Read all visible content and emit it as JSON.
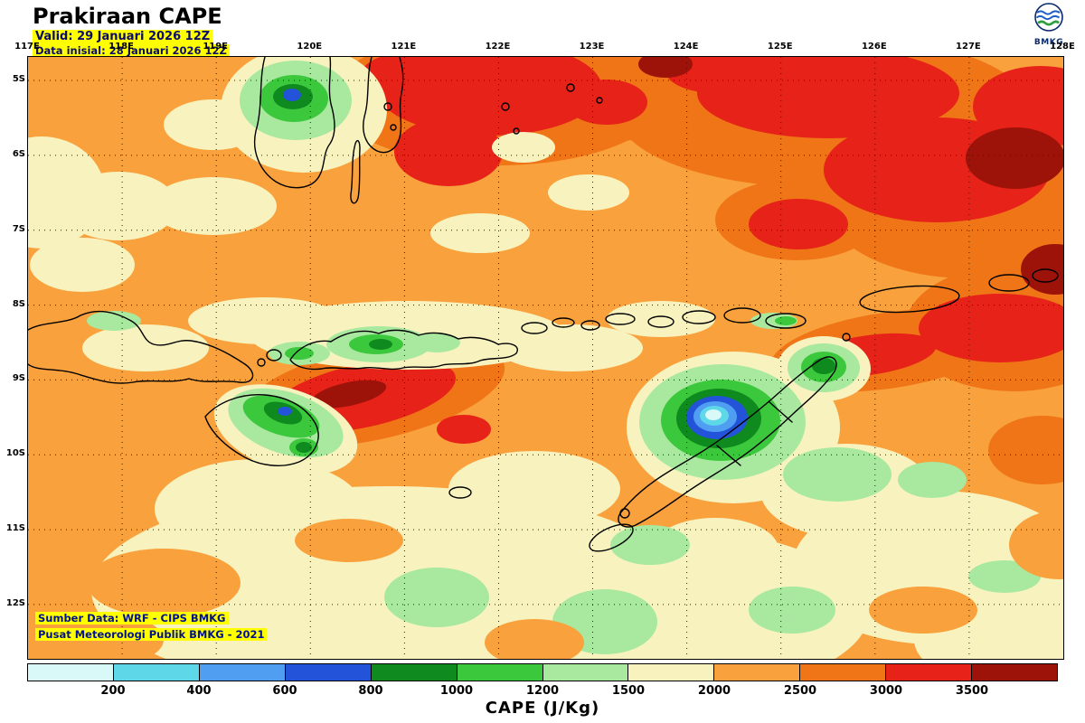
{
  "header": {
    "title": "Prakiraan CAPE",
    "valid": "Valid: 29 Januari 2026 12Z",
    "init": "Data inisial: 28 Januari 2026 12Z"
  },
  "logo": {
    "label": "BMKG"
  },
  "map": {
    "lon_labels": [
      "117E",
      "118E",
      "119E",
      "120E",
      "121E",
      "122E",
      "123E",
      "124E",
      "125E",
      "126E",
      "127E",
      "128E"
    ],
    "lat_labels": [
      "5S",
      "6S",
      "7S",
      "8S",
      "9S",
      "10S",
      "11S",
      "12S"
    ],
    "source_line1": "Sumber Data: WRF - CIPS BMKG",
    "source_line2": "Pusat Meteorologi Publik BMKG - 2021"
  },
  "colorbar": {
    "caption": "CAPE (J/Kg)",
    "unit": "J/Kg",
    "ticks": [
      "200",
      "400",
      "600",
      "800",
      "1000",
      "1200",
      "1500",
      "2000",
      "2500",
      "3000",
      "3500"
    ],
    "colors": [
      "#d9f8f8",
      "#5ed7e9",
      "#4f9ef2",
      "#2353d8",
      "#0e8a1e",
      "#3cc83c",
      "#a9e89f",
      "#f8f3be",
      "#f9a13c",
      "#ef7517",
      "#e62219",
      "#9e1309"
    ]
  },
  "colors": {
    "highlight": "#ffff00",
    "navy_text": "#00128b",
    "map_background": "#f9a13c"
  }
}
